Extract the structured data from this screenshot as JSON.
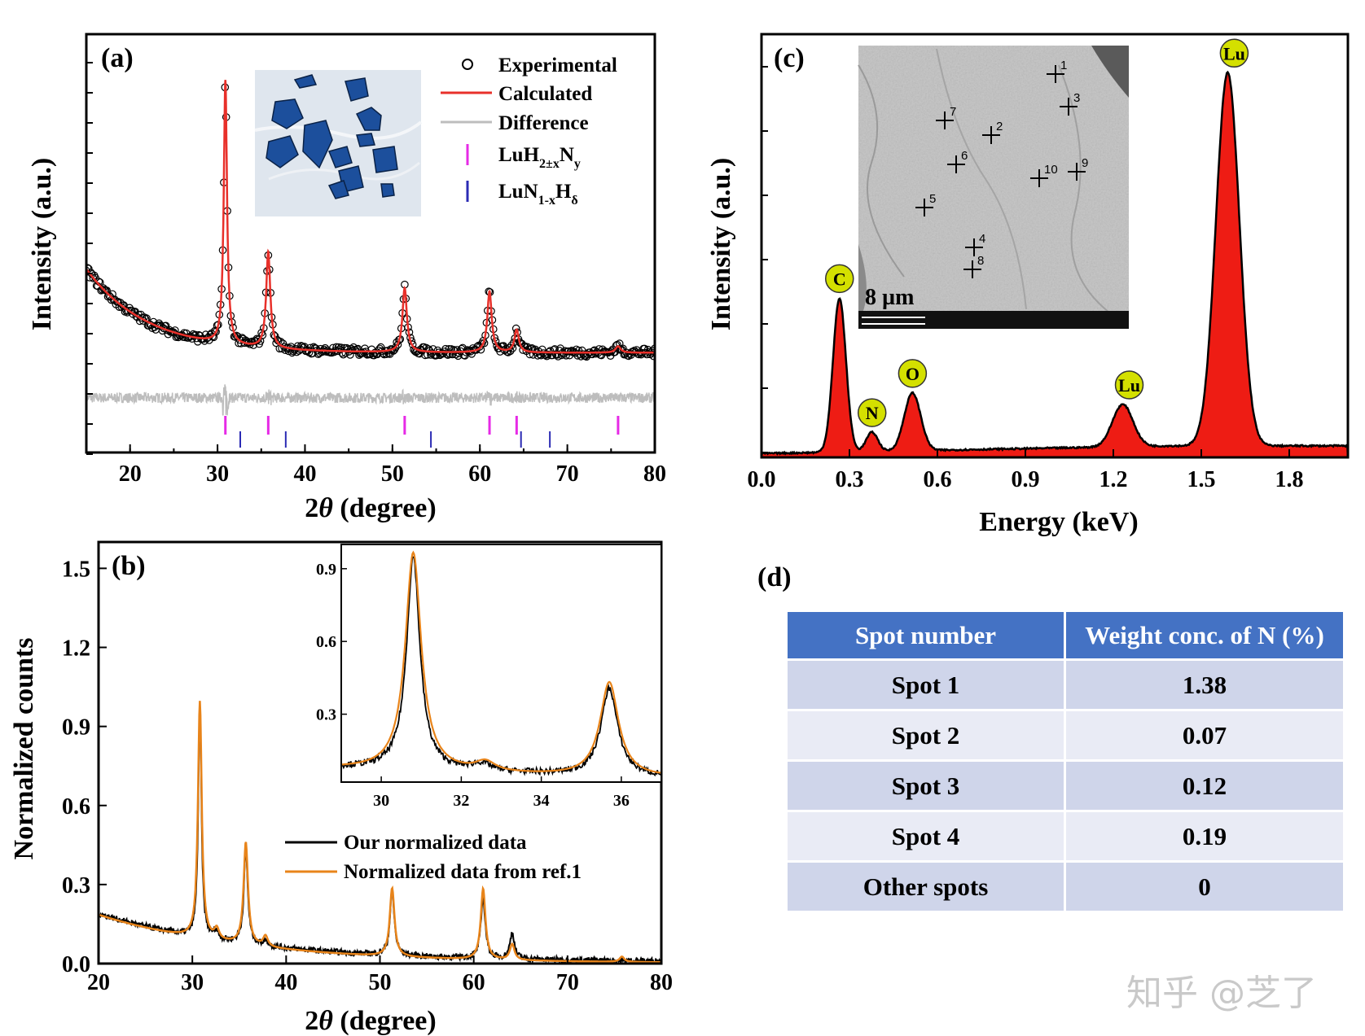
{
  "panel_labels": {
    "a": "(a)",
    "b": "(b)",
    "c": "(c)",
    "d": "(d)"
  },
  "watermark": "知乎 @芝了",
  "chart_data": [
    {
      "id": "a",
      "type": "scatter",
      "xlabel_prefix": "2",
      "xlabel_theta": "θ",
      "xlabel_suffix": " (degree)",
      "ylabel": "Intensity (a.u.)",
      "xlim": [
        15,
        80
      ],
      "ylim": [
        -15,
        115
      ],
      "xticks": [
        20,
        30,
        40,
        50,
        60,
        70,
        80
      ],
      "legend_position": "top-right",
      "legend": [
        "Experimental",
        "Calculated",
        "Difference",
        "LuH2±xNy",
        "LuN1-xHδ"
      ],
      "legend_sub": {
        "luh_base": "LuH",
        "luh_sub1": "2±x",
        "luh_mid": "N",
        "luh_sub2": "y",
        "lun_base": "LuN",
        "lun_sub1": "1-x",
        "lun_mid": "H",
        "lun_sub2": "δ"
      },
      "colors": {
        "experimental": "#000000",
        "calculated": "#e8302a",
        "difference": "#bdbdbd",
        "luh": "#e62ae6",
        "lun": "#2b2bb4"
      },
      "background": {
        "offset": 16,
        "amplitude": 26,
        "decay": 7
      },
      "peaks": [
        {
          "x": 30.9,
          "height": 82,
          "width": 0.22
        },
        {
          "x": 35.8,
          "height": 30,
          "width": 0.28
        },
        {
          "x": 51.4,
          "height": 20,
          "width": 0.3
        },
        {
          "x": 61.1,
          "height": 19,
          "width": 0.3
        },
        {
          "x": 64.2,
          "height": 7,
          "width": 0.3
        },
        {
          "x": 75.8,
          "height": 2,
          "width": 0.35
        }
      ],
      "difference_level": 2,
      "luh_ticks": [
        30.9,
        35.8,
        51.4,
        61.1,
        64.2,
        75.8
      ],
      "lun_ticks": [
        32.6,
        37.8,
        54.4,
        64.7,
        68.0
      ]
    },
    {
      "id": "b",
      "type": "line",
      "xlabel_prefix": "2",
      "xlabel_theta": "θ",
      "xlabel_suffix": " (degree)",
      "ylabel": "Normalized counts",
      "xlim": [
        20,
        80
      ],
      "ylim": [
        0,
        1.6
      ],
      "xticks": [
        20,
        30,
        40,
        50,
        60,
        70,
        80
      ],
      "yticks": [
        "0.0",
        "0.3",
        "0.6",
        "0.9",
        "1.2",
        "1.5"
      ],
      "legend_position": "bottom-right",
      "series": [
        {
          "name": "Our normalized data",
          "color": "#000000"
        },
        {
          "name": "Normalized data from ref.1",
          "color": "#e8841a"
        }
      ],
      "baseline": {
        "start": 0.19,
        "end": 0.01
      },
      "peaks_our": [
        {
          "x": 30.8,
          "height": 0.88,
          "width": 0.2
        },
        {
          "x": 32.5,
          "height": 0.03,
          "width": 0.3
        },
        {
          "x": 35.7,
          "height": 0.36,
          "width": 0.25
        },
        {
          "x": 37.8,
          "height": 0.02,
          "width": 0.3
        },
        {
          "x": 51.3,
          "height": 0.24,
          "width": 0.28
        },
        {
          "x": 61.0,
          "height": 0.23,
          "width": 0.28
        },
        {
          "x": 64.1,
          "height": 0.1,
          "width": 0.28
        }
      ],
      "peaks_ref": [
        {
          "x": 30.8,
          "height": 0.9,
          "width": 0.24
        },
        {
          "x": 32.6,
          "height": 0.04,
          "width": 0.3
        },
        {
          "x": 35.7,
          "height": 0.39,
          "width": 0.28
        },
        {
          "x": 37.8,
          "height": 0.04,
          "width": 0.3
        },
        {
          "x": 51.3,
          "height": 0.26,
          "width": 0.3
        },
        {
          "x": 61.0,
          "height": 0.27,
          "width": 0.3
        },
        {
          "x": 64.1,
          "height": 0.06,
          "width": 0.3
        },
        {
          "x": 75.8,
          "height": 0.02,
          "width": 0.3
        }
      ],
      "inset": {
        "xlim": [
          29,
          37
        ],
        "ylim": [
          0.02,
          1.0
        ],
        "xticks": [
          30,
          32,
          34,
          36
        ],
        "yticks": [
          "0.3",
          "0.6",
          "0.9"
        ]
      }
    },
    {
      "id": "c",
      "type": "area",
      "xlabel": "Energy (keV)",
      "ylabel": "Intensity (a.u.)",
      "xlim": [
        0,
        2.0
      ],
      "ylim": [
        0,
        1.1
      ],
      "xticks": [
        "0.0",
        "0.3",
        "0.6",
        "0.9",
        "1.2",
        "1.5",
        "1.8"
      ],
      "fill_color": "#ee1c14",
      "marker_color": "#d4e000",
      "peaks": [
        {
          "x": 0.266,
          "height": 0.4,
          "width": 0.022,
          "label": "C"
        },
        {
          "x": 0.377,
          "height": 0.05,
          "width": 0.02,
          "label": "N"
        },
        {
          "x": 0.515,
          "height": 0.15,
          "width": 0.028,
          "label": "O"
        },
        {
          "x": 1.232,
          "height": 0.11,
          "width": 0.035,
          "label": "Lu"
        },
        {
          "x": 1.59,
          "height": 0.97,
          "width": 0.04,
          "label": "Lu"
        }
      ],
      "inset_scale_label": "8 µm",
      "sem_spots": [
        "1",
        "2",
        "3",
        "4",
        "5",
        "6",
        "7",
        "8",
        "9",
        "10"
      ]
    }
  ],
  "table": {
    "headers": [
      "Spot number",
      "Weight conc. of N (%)"
    ],
    "rows": [
      [
        "Spot 1",
        "1.38"
      ],
      [
        "Spot 2",
        "0.07"
      ],
      [
        "Spot 3",
        "0.12"
      ],
      [
        "Spot 4",
        "0.19"
      ],
      [
        "Other spots",
        "0"
      ]
    ]
  }
}
